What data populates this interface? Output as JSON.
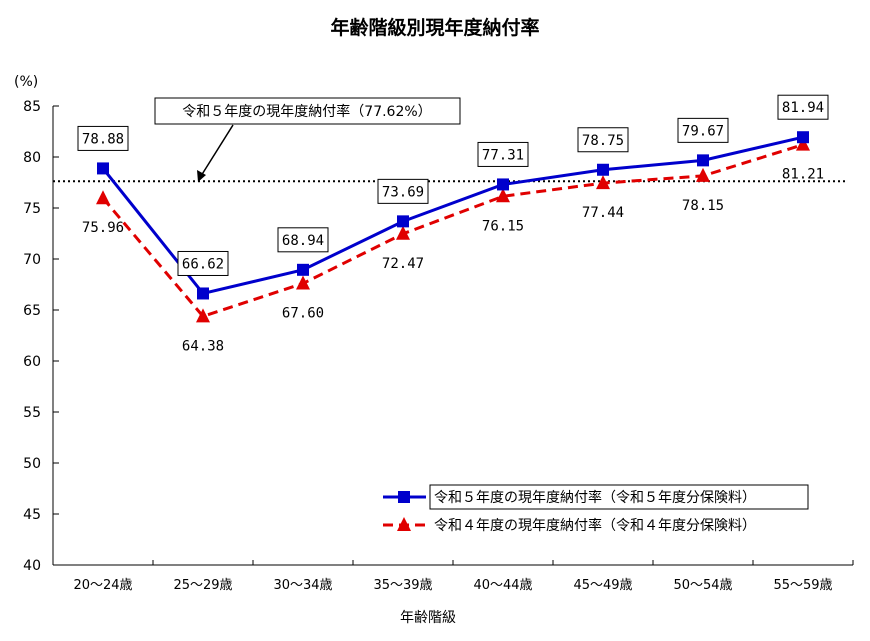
{
  "chart_data": {
    "type": "line",
    "title": "年齢階級別現年度納付率",
    "xlabel": "年齢階級",
    "ylabel": "(%)",
    "ylim": [
      40,
      85
    ],
    "yticks": [
      40,
      45,
      50,
      55,
      60,
      65,
      70,
      75,
      80,
      85
    ],
    "categories": [
      "20～24歳",
      "25～29歳",
      "30～34歳",
      "35～39歳",
      "40～44歳",
      "45～49歳",
      "50～54歳",
      "55～59歳"
    ],
    "series": [
      {
        "name": "令和５年度の現年度納付率（令和５年度分保険料）",
        "color": "#0000cc",
        "marker": "square",
        "line": "solid",
        "values": [
          78.88,
          66.62,
          68.94,
          73.69,
          77.31,
          78.75,
          79.67,
          81.94
        ],
        "labels": [
          "78.88",
          "66.62",
          "68.94",
          "73.69",
          "77.31",
          "78.75",
          "79.67",
          "81.94"
        ]
      },
      {
        "name": "令和４年度の現年度納付率（令和４年度分保険料）",
        "color": "#e00000",
        "marker": "triangle",
        "line": "dashed",
        "values": [
          75.96,
          64.38,
          67.6,
          72.47,
          76.15,
          77.44,
          78.15,
          81.21
        ],
        "labels": [
          "75.96",
          "64.38",
          "67.60",
          "72.47",
          "76.15",
          "77.44",
          "78.15",
          "81.21"
        ]
      }
    ],
    "reference_line": {
      "value": 77.62,
      "style": "dotted",
      "label": "令和５年度の現年度納付率（77.62%）"
    },
    "legend": "bottom-right",
    "grid": false
  }
}
